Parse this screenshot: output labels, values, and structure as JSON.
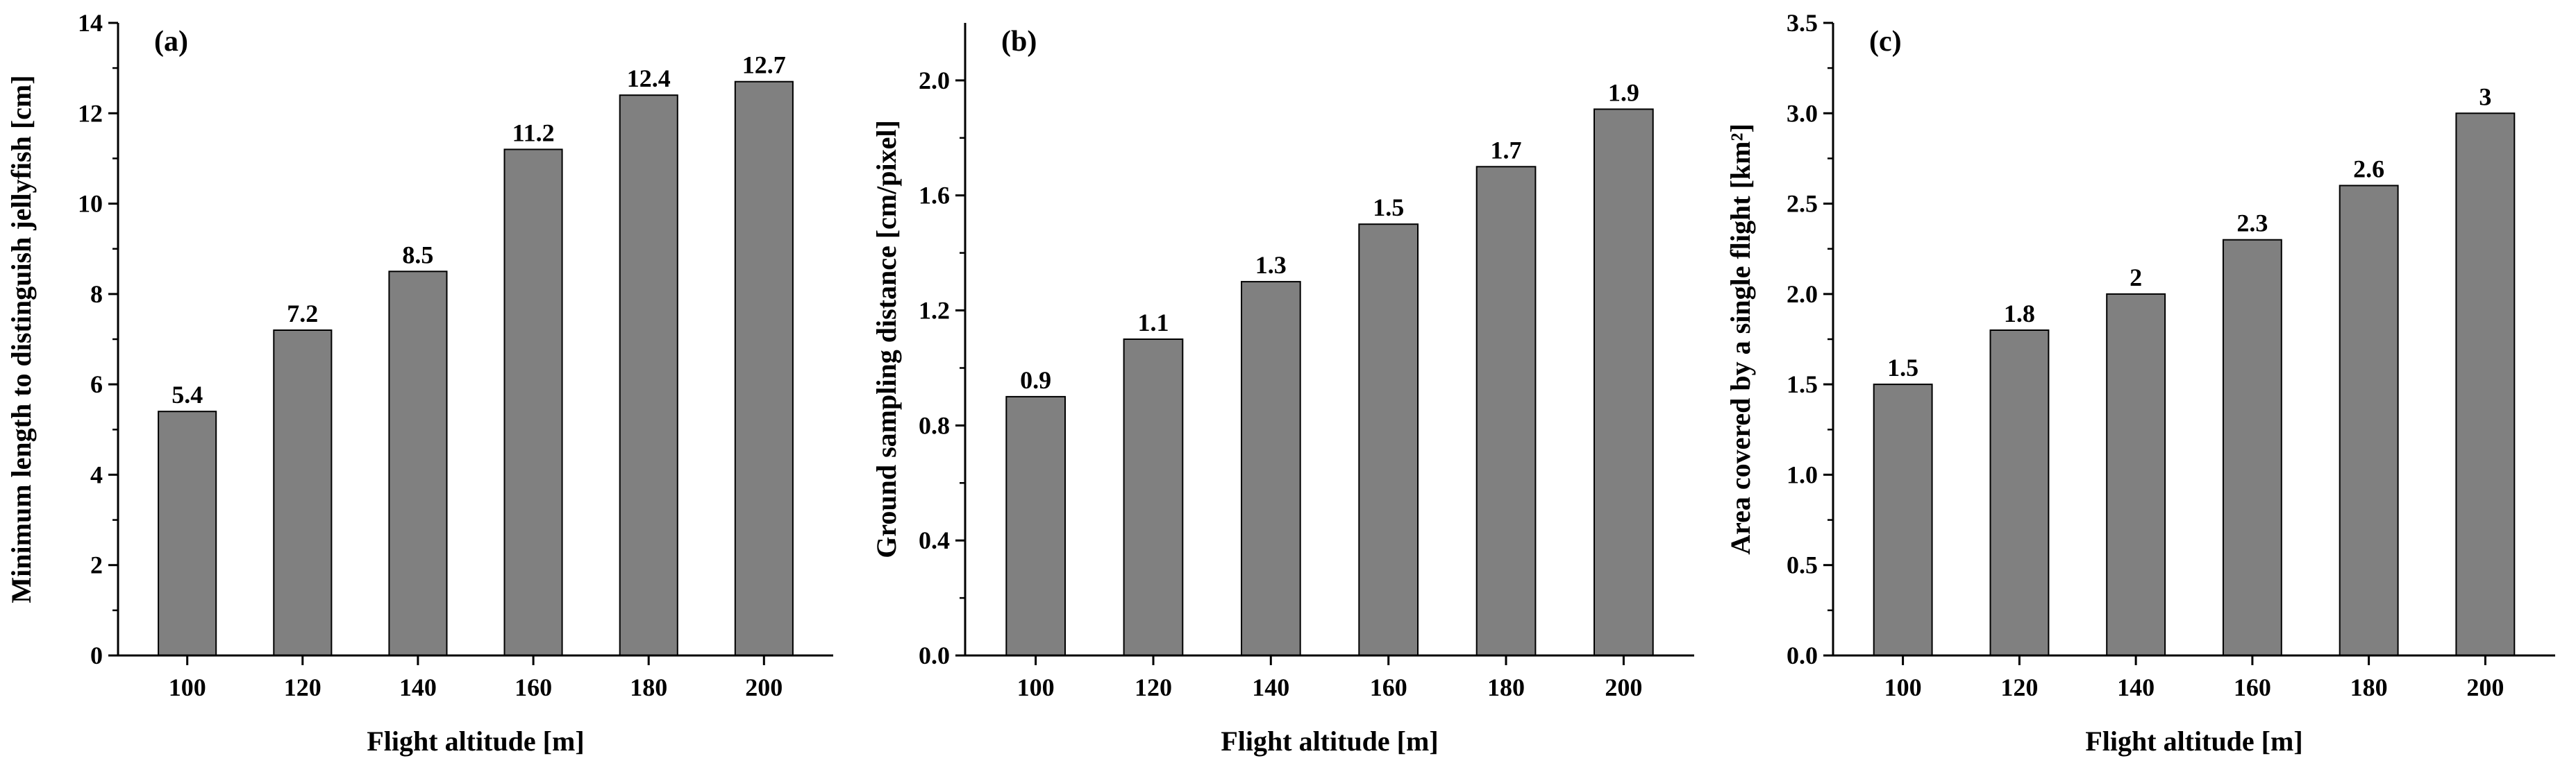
{
  "chart_data": [
    {
      "type": "bar",
      "panel": "(a)",
      "categories": [
        "100",
        "120",
        "140",
        "160",
        "180",
        "200"
      ],
      "values": [
        5.4,
        7.2,
        8.5,
        11.2,
        12.4,
        12.7
      ],
      "data_labels": [
        "5.4",
        "7.2",
        "8.5",
        "11.2",
        "12.4",
        "12.7"
      ],
      "xlabel": "Flight altitude [m]",
      "ylabel": "Minimum length to distinguish  jellyfish [cm]",
      "ylim": [
        0,
        14
      ],
      "yticks": [
        0,
        2,
        4,
        6,
        8,
        10,
        12,
        14
      ],
      "ytick_labels": [
        "0",
        "2",
        "4",
        "6",
        "8",
        "10",
        "12",
        "14"
      ],
      "grid": false,
      "bar_color": "#808080"
    },
    {
      "type": "bar",
      "panel": "(b)",
      "categories": [
        "100",
        "120",
        "140",
        "160",
        "180",
        "200"
      ],
      "values": [
        0.9,
        1.1,
        1.3,
        1.5,
        1.7,
        1.9
      ],
      "data_labels": [
        "0.9",
        "1.1",
        "1.3",
        "1.5",
        "1.7",
        "1.9"
      ],
      "xlabel": "Flight altitude [m]",
      "ylabel": "Ground sampling distance [cm/pixel]",
      "ylim": [
        0,
        2.2
      ],
      "yticks": [
        0,
        0.4,
        0.8,
        1.2,
        1.6,
        2.0
      ],
      "ytick_labels": [
        "0.0",
        "0.4",
        "0.8",
        "1.2",
        "1.6",
        "2.0"
      ],
      "grid": false,
      "bar_color": "#808080"
    },
    {
      "type": "bar",
      "panel": "(c)",
      "categories": [
        "100",
        "120",
        "140",
        "160",
        "180",
        "200"
      ],
      "values": [
        1.5,
        1.8,
        2.0,
        2.3,
        2.6,
        3.0
      ],
      "data_labels": [
        "1.5",
        "1.8",
        "2",
        "2.3",
        "2.6",
        "3"
      ],
      "xlabel": "Flight altitude [m]",
      "ylabel": "Area covered by a single flight [km²]",
      "ylim": [
        0,
        3.5
      ],
      "yticks": [
        0,
        0.5,
        1.0,
        1.5,
        2.0,
        2.5,
        3.0,
        3.5
      ],
      "ytick_labels": [
        "0.0",
        "0.5",
        "1.0",
        "1.5",
        "2.0",
        "2.5",
        "3.0",
        "3.5"
      ],
      "grid": false,
      "bar_color": "#808080"
    }
  ]
}
